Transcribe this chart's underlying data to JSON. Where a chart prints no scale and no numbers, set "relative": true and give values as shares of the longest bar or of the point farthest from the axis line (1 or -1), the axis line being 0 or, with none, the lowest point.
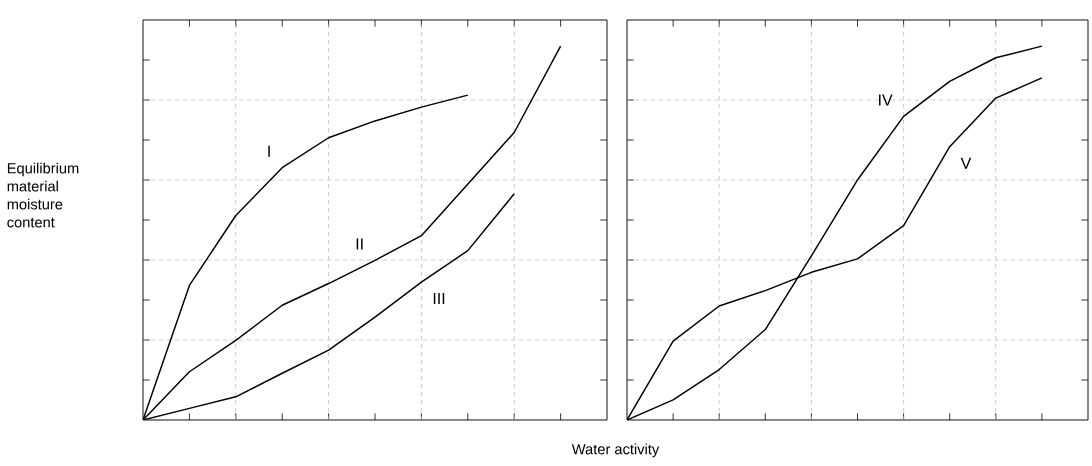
{
  "chart_data": [
    {
      "type": "line",
      "relative": true,
      "ylabel": "Equilibrium material moisture content",
      "xlabel": "Water activity",
      "grid": true,
      "marker": "none",
      "line_style": "solid",
      "categories": [
        null,
        null,
        null,
        null,
        null,
        null,
        null,
        null,
        null,
        null,
        null
      ],
      "series": [
        {
          "name": "I",
          "color": "#000000",
          "values": [
            0,
            0.36,
            0.547,
            0.675,
            0.755,
            0.8,
            0.837,
            0.869,
            null,
            null,
            null
          ]
        },
        {
          "name": "II",
          "color": "#000000",
          "values": [
            0,
            0.129,
            0.213,
            0.307,
            0.365,
            0.427,
            0.493,
            0.631,
            0.769,
            1,
            null
          ]
        },
        {
          "name": "III",
          "color": "#000000",
          "values": [
            0,
            0.031,
            0.062,
            0.125,
            0.187,
            0.275,
            0.369,
            0.453,
            0.605,
            null,
            null
          ]
        }
      ]
    },
    {
      "type": "line",
      "relative": true,
      "grid": true,
      "marker": "none",
      "line_style": "solid",
      "categories": [
        null,
        null,
        null,
        null,
        null,
        null,
        null,
        null,
        null,
        null,
        null
      ],
      "series": [
        {
          "name": "IV",
          "color": "#000000",
          "values": [
            0,
            0.054,
            0.135,
            0.242,
            0.439,
            0.642,
            0.812,
            0.906,
            0.969,
            1,
            null
          ]
        },
        {
          "name": "V",
          "color": "#000000",
          "values": [
            0,
            0.211,
            0.305,
            0.346,
            0.395,
            0.431,
            0.52,
            0.731,
            0.861,
            0.915,
            null
          ]
        }
      ]
    }
  ]
}
